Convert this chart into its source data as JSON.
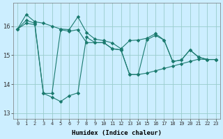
{
  "xlabel": "Humidex (Indice chaleur)",
  "background_color": "#cceeff",
  "line_color": "#1a7a6e",
  "grid_color": "#99cccc",
  "xlim": [
    -0.5,
    23.5
  ],
  "ylim": [
    12.8,
    16.8
  ],
  "yticks": [
    13,
    14,
    15,
    16
  ],
  "xticks": [
    0,
    1,
    2,
    3,
    4,
    5,
    6,
    7,
    8,
    9,
    10,
    11,
    12,
    13,
    14,
    15,
    16,
    17,
    18,
    19,
    20,
    21,
    22,
    23
  ],
  "line1": [
    15.9,
    16.4,
    16.15,
    16.1,
    16.0,
    15.9,
    15.88,
    16.32,
    15.78,
    15.55,
    15.5,
    15.42,
    15.22,
    15.5,
    15.52,
    15.58,
    15.74,
    15.52,
    14.78,
    14.83,
    15.18,
    14.93,
    14.85,
    14.85
  ],
  "line2": [
    15.9,
    16.1,
    16.05,
    13.68,
    13.55,
    13.4,
    13.6,
    13.7,
    15.62,
    15.43,
    15.43,
    15.22,
    15.18,
    14.33,
    14.33,
    14.38,
    14.46,
    14.54,
    14.62,
    14.7,
    14.78,
    14.86,
    14.85,
    14.85
  ],
  "line3": [
    15.9,
    16.2,
    16.1,
    13.68,
    13.68,
    15.88,
    15.82,
    15.88,
    15.43,
    15.43,
    15.43,
    15.22,
    15.18,
    14.33,
    14.33,
    15.53,
    15.68,
    15.52,
    14.78,
    14.83,
    15.18,
    14.93,
    14.85,
    14.85
  ]
}
